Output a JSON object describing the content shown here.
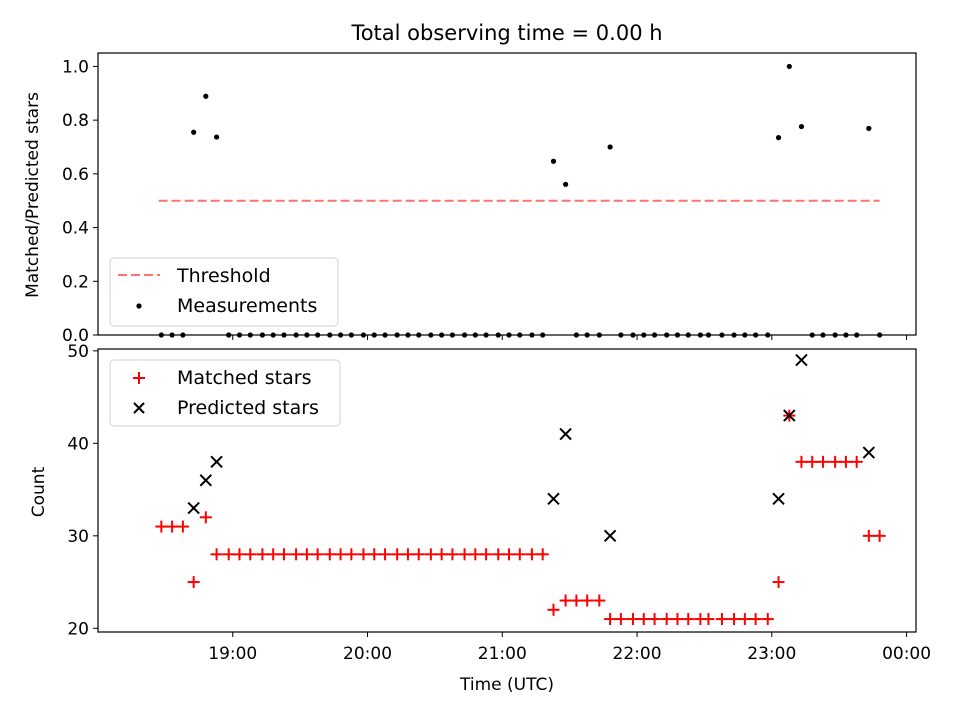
{
  "chart_data": [
    {
      "type": "scatter",
      "title": "Total observing time = 0.00 h",
      "ylabel": "Matched/Predicted stars",
      "ylim": [
        0,
        1.05
      ],
      "yticks": [
        "0.0",
        "0.2",
        "0.4",
        "0.6",
        "0.8",
        "1.0"
      ],
      "ytick_values": [
        0,
        0.2,
        0.4,
        0.6,
        0.8,
        1.0
      ],
      "threshold": {
        "name": "Threshold",
        "value": 0.5,
        "x_range": [
          18.45,
          23.8
        ],
        "color": "#ff7070",
        "style": "dashed"
      },
      "series": [
        {
          "name": "Measurements",
          "color": "#000000",
          "marker": "dot",
          "x": [
            18.47,
            18.55,
            18.63,
            18.71,
            18.8,
            18.88,
            18.97,
            19.05,
            19.13,
            19.22,
            19.3,
            19.38,
            19.47,
            19.55,
            19.63,
            19.72,
            19.8,
            19.88,
            19.97,
            20.05,
            20.13,
            20.22,
            20.3,
            20.38,
            20.47,
            20.55,
            20.63,
            20.72,
            20.8,
            20.88,
            20.97,
            21.05,
            21.13,
            21.22,
            21.3,
            21.38,
            21.47,
            21.55,
            21.63,
            21.72,
            21.8,
            21.88,
            21.97,
            22.05,
            22.13,
            22.22,
            22.3,
            22.38,
            22.47,
            22.53,
            22.63,
            22.72,
            22.8,
            22.88,
            22.97,
            23.05,
            23.13,
            23.22,
            23.3,
            23.38,
            23.47,
            23.55,
            23.63,
            23.72,
            23.8
          ],
          "y": [
            0,
            0,
            0,
            0.755,
            0.889,
            0.737,
            0,
            0,
            0,
            0,
            0,
            0,
            0,
            0,
            0,
            0,
            0,
            0,
            0,
            0,
            0,
            0,
            0,
            0,
            0,
            0,
            0,
            0,
            0,
            0,
            0,
            0,
            0,
            0,
            0,
            0.647,
            0.561,
            0,
            0,
            0,
            0.7,
            0,
            0,
            0,
            0,
            0,
            0,
            0,
            0,
            0,
            0,
            0,
            0,
            0,
            0,
            0.735,
            1.0,
            0.776,
            0,
            0,
            0,
            0,
            0,
            0.769,
            0
          ]
        }
      ],
      "legend": {
        "position": "lower-left",
        "entries": [
          "Threshold",
          "Measurements"
        ]
      }
    },
    {
      "type": "scatter",
      "xlabel": "Time (UTC)",
      "ylabel": "Count",
      "ylim": [
        19.6,
        50.2
      ],
      "yticks": [
        "20",
        "30",
        "40",
        "50"
      ],
      "ytick_values": [
        20,
        30,
        40,
        50
      ],
      "xlim": [
        18.0,
        24.07
      ],
      "xticks": [
        "19:00",
        "20:00",
        "21:00",
        "22:00",
        "23:00",
        "00:00"
      ],
      "xtick_values": [
        19,
        20,
        21,
        22,
        23,
        24
      ],
      "series": [
        {
          "name": "Matched stars",
          "color": "#ff0000",
          "marker": "plus",
          "x": [
            18.47,
            18.55,
            18.63,
            18.71,
            18.8,
            18.88,
            18.97,
            19.05,
            19.13,
            19.22,
            19.3,
            19.38,
            19.47,
            19.55,
            19.63,
            19.72,
            19.8,
            19.88,
            19.97,
            20.05,
            20.13,
            20.22,
            20.3,
            20.38,
            20.47,
            20.55,
            20.63,
            20.72,
            20.8,
            20.88,
            20.97,
            21.05,
            21.13,
            21.22,
            21.3,
            21.38,
            21.47,
            21.55,
            21.63,
            21.72,
            21.8,
            21.88,
            21.97,
            22.05,
            22.13,
            22.22,
            22.3,
            22.38,
            22.47,
            22.53,
            22.63,
            22.72,
            22.8,
            22.88,
            22.97,
            23.05,
            23.13,
            23.22,
            23.3,
            23.38,
            23.47,
            23.55,
            23.63,
            23.72,
            23.8
          ],
          "y": [
            31,
            31,
            31,
            25,
            32,
            28,
            28,
            28,
            28,
            28,
            28,
            28,
            28,
            28,
            28,
            28,
            28,
            28,
            28,
            28,
            28,
            28,
            28,
            28,
            28,
            28,
            28,
            28,
            28,
            28,
            28,
            28,
            28,
            28,
            28,
            22,
            23,
            23,
            23,
            23,
            21,
            21,
            21,
            21,
            21,
            21,
            21,
            21,
            21,
            21,
            21,
            21,
            21,
            21,
            21,
            25,
            43,
            38,
            38,
            38,
            38,
            38,
            38,
            30,
            30
          ]
        },
        {
          "name": "Predicted stars",
          "color": "#000000",
          "marker": "x",
          "x": [
            18.71,
            18.8,
            18.88,
            21.38,
            21.47,
            21.8,
            23.05,
            23.13,
            23.22,
            23.72
          ],
          "y": [
            33,
            36,
            38,
            34,
            41,
            30,
            34,
            43,
            49,
            39
          ]
        }
      ],
      "legend": {
        "position": "upper-left",
        "entries": [
          "Matched stars",
          "Predicted stars"
        ]
      }
    }
  ]
}
